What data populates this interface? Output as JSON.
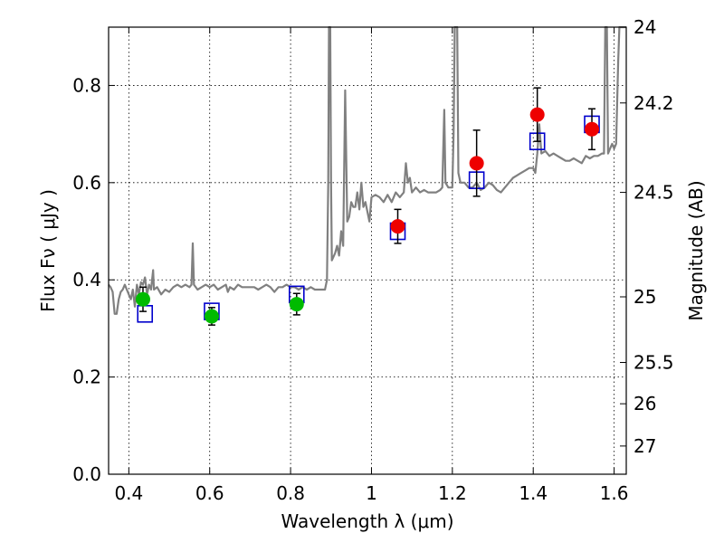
{
  "chart_data": {
    "type": "scatter",
    "xlabel": "Wavelength  λ (μm)",
    "ylabel": "Flux  Fν  ( μJy )",
    "ylabel_right": "Magnitude (AB)",
    "xlim": [
      0.35,
      1.63
    ],
    "ylim": [
      0.0,
      0.92
    ],
    "grid": true,
    "x_ticks": [
      {
        "value": 0.4,
        "label": "0.4"
      },
      {
        "value": 0.6,
        "label": "0.6"
      },
      {
        "value": 0.8,
        "label": "0.8"
      },
      {
        "value": 1.0,
        "label": "1"
      },
      {
        "value": 1.2,
        "label": "1.2"
      },
      {
        "value": 1.4,
        "label": "1.4"
      },
      {
        "value": 1.6,
        "label": "1.6"
      }
    ],
    "y_ticks": [
      {
        "value": 0.0,
        "label": "0.0"
      },
      {
        "value": 0.2,
        "label": "0.2"
      },
      {
        "value": 0.4,
        "label": "0.4"
      },
      {
        "value": 0.6,
        "label": "0.6"
      },
      {
        "value": 0.8,
        "label": "0.8"
      }
    ],
    "right_ticks": [
      {
        "label": "24",
        "flux": 0.92
      },
      {
        "label": "24.2",
        "flux": 0.764
      },
      {
        "label": "24.5",
        "flux": 0.58
      },
      {
        "label": "25",
        "flux": 0.365
      },
      {
        "label": "25.5",
        "flux": 0.23
      },
      {
        "label": "26",
        "flux": 0.145
      },
      {
        "label": "27",
        "flux": 0.058
      }
    ],
    "colors": {
      "model_spectrum": "#808080",
      "model_photometry": "#0000cc",
      "green_points": "#00bb00",
      "red_points": "#ee0000",
      "errorbars": "#000000"
    },
    "model_photometry": [
      {
        "x": 0.44,
        "y": 0.33
      },
      {
        "x": 0.605,
        "y": 0.335
      },
      {
        "x": 0.815,
        "y": 0.37
      },
      {
        "x": 1.065,
        "y": 0.5
      },
      {
        "x": 1.26,
        "y": 0.605
      },
      {
        "x": 1.41,
        "y": 0.685
      },
      {
        "x": 1.545,
        "y": 0.72
      }
    ],
    "observed_green": [
      {
        "x": 0.435,
        "y": 0.36,
        "err": 0.025
      },
      {
        "x": 0.605,
        "y": 0.325,
        "err": 0.018
      },
      {
        "x": 0.815,
        "y": 0.35,
        "err": 0.022
      }
    ],
    "observed_red": [
      {
        "x": 1.065,
        "y": 0.51,
        "err": 0.035
      },
      {
        "x": 1.26,
        "y": 0.64,
        "err": 0.068
      },
      {
        "x": 1.41,
        "y": 0.74,
        "err": 0.055
      },
      {
        "x": 1.545,
        "y": 0.71,
        "err": 0.042
      }
    ],
    "spectrum": [
      [
        0.35,
        0.39
      ],
      [
        0.355,
        0.385
      ],
      [
        0.36,
        0.375
      ],
      [
        0.365,
        0.33
      ],
      [
        0.37,
        0.33
      ],
      [
        0.375,
        0.36
      ],
      [
        0.38,
        0.375
      ],
      [
        0.385,
        0.38
      ],
      [
        0.39,
        0.39
      ],
      [
        0.395,
        0.38
      ],
      [
        0.4,
        0.37
      ],
      [
        0.405,
        0.36
      ],
      [
        0.41,
        0.38
      ],
      [
        0.415,
        0.345
      ],
      [
        0.42,
        0.39
      ],
      [
        0.425,
        0.37
      ],
      [
        0.43,
        0.395
      ],
      [
        0.435,
        0.39
      ],
      [
        0.44,
        0.405
      ],
      [
        0.445,
        0.37
      ],
      [
        0.45,
        0.39
      ],
      [
        0.455,
        0.38
      ],
      [
        0.46,
        0.42
      ],
      [
        0.462,
        0.38
      ],
      [
        0.47,
        0.385
      ],
      [
        0.48,
        0.37
      ],
      [
        0.49,
        0.38
      ],
      [
        0.5,
        0.375
      ],
      [
        0.51,
        0.385
      ],
      [
        0.52,
        0.39
      ],
      [
        0.53,
        0.385
      ],
      [
        0.54,
        0.39
      ],
      [
        0.55,
        0.385
      ],
      [
        0.555,
        0.39
      ],
      [
        0.558,
        0.475
      ],
      [
        0.561,
        0.39
      ],
      [
        0.57,
        0.38
      ],
      [
        0.58,
        0.385
      ],
      [
        0.59,
        0.39
      ],
      [
        0.6,
        0.385
      ],
      [
        0.61,
        0.39
      ],
      [
        0.62,
        0.38
      ],
      [
        0.63,
        0.385
      ],
      [
        0.64,
        0.39
      ],
      [
        0.645,
        0.375
      ],
      [
        0.65,
        0.385
      ],
      [
        0.66,
        0.38
      ],
      [
        0.67,
        0.39
      ],
      [
        0.68,
        0.385
      ],
      [
        0.69,
        0.385
      ],
      [
        0.7,
        0.385
      ],
      [
        0.71,
        0.385
      ],
      [
        0.72,
        0.38
      ],
      [
        0.73,
        0.385
      ],
      [
        0.74,
        0.39
      ],
      [
        0.75,
        0.385
      ],
      [
        0.76,
        0.375
      ],
      [
        0.77,
        0.385
      ],
      [
        0.78,
        0.385
      ],
      [
        0.79,
        0.39
      ],
      [
        0.8,
        0.385
      ],
      [
        0.81,
        0.385
      ],
      [
        0.82,
        0.38
      ],
      [
        0.83,
        0.385
      ],
      [
        0.84,
        0.38
      ],
      [
        0.85,
        0.385
      ],
      [
        0.86,
        0.38
      ],
      [
        0.87,
        0.38
      ],
      [
        0.88,
        0.38
      ],
      [
        0.885,
        0.38
      ],
      [
        0.89,
        0.4
      ],
      [
        0.893,
        0.6
      ],
      [
        0.895,
        0.92
      ],
      [
        0.898,
        0.92
      ],
      [
        0.9,
        0.6
      ],
      [
        0.902,
        0.44
      ],
      [
        0.91,
        0.455
      ],
      [
        0.915,
        0.47
      ],
      [
        0.92,
        0.45
      ],
      [
        0.925,
        0.5
      ],
      [
        0.93,
        0.47
      ],
      [
        0.935,
        0.79
      ],
      [
        0.94,
        0.52
      ],
      [
        0.945,
        0.53
      ],
      [
        0.95,
        0.56
      ],
      [
        0.955,
        0.55
      ],
      [
        0.96,
        0.55
      ],
      [
        0.965,
        0.58
      ],
      [
        0.97,
        0.545
      ],
      [
        0.975,
        0.6
      ],
      [
        0.98,
        0.55
      ],
      [
        0.985,
        0.56
      ],
      [
        0.99,
        0.54
      ],
      [
        0.995,
        0.52
      ],
      [
        1.0,
        0.57
      ],
      [
        1.01,
        0.575
      ],
      [
        1.02,
        0.57
      ],
      [
        1.03,
        0.56
      ],
      [
        1.04,
        0.575
      ],
      [
        1.05,
        0.56
      ],
      [
        1.06,
        0.58
      ],
      [
        1.07,
        0.57
      ],
      [
        1.08,
        0.58
      ],
      [
        1.085,
        0.64
      ],
      [
        1.09,
        0.6
      ],
      [
        1.095,
        0.61
      ],
      [
        1.1,
        0.58
      ],
      [
        1.11,
        0.59
      ],
      [
        1.12,
        0.58
      ],
      [
        1.13,
        0.585
      ],
      [
        1.14,
        0.58
      ],
      [
        1.15,
        0.58
      ],
      [
        1.16,
        0.58
      ],
      [
        1.17,
        0.585
      ],
      [
        1.175,
        0.59
      ],
      [
        1.18,
        0.75
      ],
      [
        1.183,
        0.6
      ],
      [
        1.19,
        0.59
      ],
      [
        1.2,
        0.59
      ],
      [
        1.203,
        0.7
      ],
      [
        1.206,
        0.92
      ],
      [
        1.212,
        0.92
      ],
      [
        1.215,
        0.62
      ],
      [
        1.22,
        0.6
      ],
      [
        1.23,
        0.6
      ],
      [
        1.24,
        0.59
      ],
      [
        1.25,
        0.59
      ],
      [
        1.26,
        0.6
      ],
      [
        1.27,
        0.585
      ],
      [
        1.28,
        0.59
      ],
      [
        1.29,
        0.6
      ],
      [
        1.3,
        0.595
      ],
      [
        1.31,
        0.585
      ],
      [
        1.32,
        0.58
      ],
      [
        1.33,
        0.59
      ],
      [
        1.34,
        0.6
      ],
      [
        1.35,
        0.61
      ],
      [
        1.36,
        0.615
      ],
      [
        1.37,
        0.62
      ],
      [
        1.38,
        0.625
      ],
      [
        1.39,
        0.63
      ],
      [
        1.4,
        0.63
      ],
      [
        1.405,
        0.62
      ],
      [
        1.41,
        0.66
      ],
      [
        1.415,
        0.72
      ],
      [
        1.42,
        0.66
      ],
      [
        1.43,
        0.665
      ],
      [
        1.44,
        0.655
      ],
      [
        1.45,
        0.66
      ],
      [
        1.46,
        0.655
      ],
      [
        1.47,
        0.65
      ],
      [
        1.48,
        0.645
      ],
      [
        1.49,
        0.645
      ],
      [
        1.5,
        0.65
      ],
      [
        1.51,
        0.645
      ],
      [
        1.52,
        0.64
      ],
      [
        1.53,
        0.655
      ],
      [
        1.54,
        0.65
      ],
      [
        1.55,
        0.655
      ],
      [
        1.56,
        0.655
      ],
      [
        1.57,
        0.66
      ],
      [
        1.575,
        0.66
      ],
      [
        1.578,
        0.92
      ],
      [
        1.582,
        0.92
      ],
      [
        1.585,
        0.66
      ],
      [
        1.59,
        0.67
      ],
      [
        1.595,
        0.68
      ],
      [
        1.6,
        0.67
      ],
      [
        1.605,
        0.68
      ],
      [
        1.61,
        0.85
      ],
      [
        1.613,
        0.92
      ],
      [
        1.62,
        0.92
      ],
      [
        1.625,
        0.92
      ],
      [
        1.63,
        0.92
      ]
    ]
  }
}
